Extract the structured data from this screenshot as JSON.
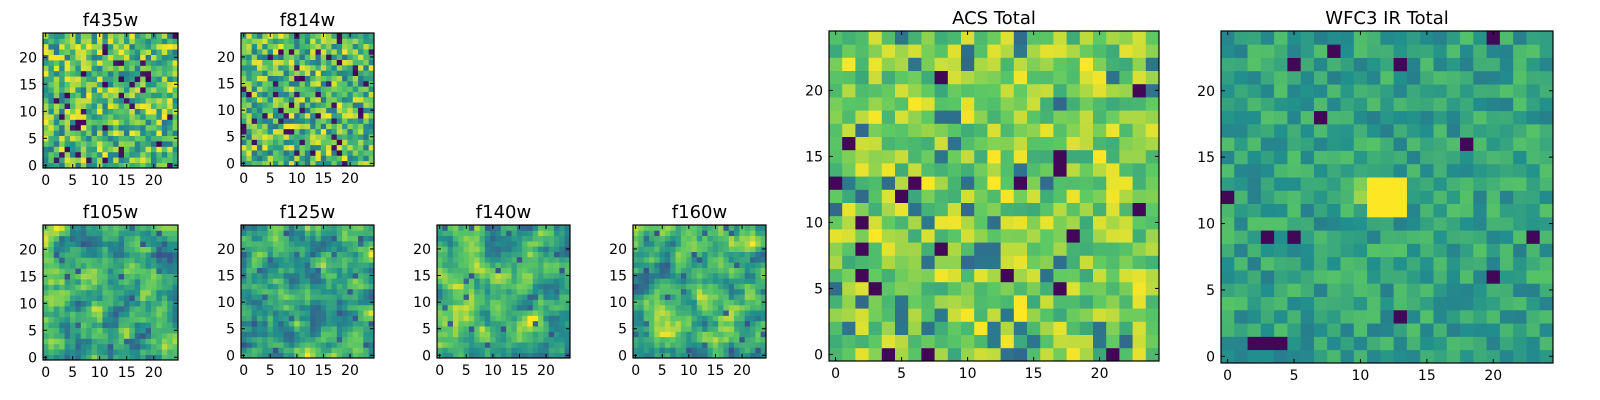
{
  "chart_data": [
    {
      "type": "heatmap",
      "title": "f435w",
      "grid_size": 25,
      "xticks": [
        0,
        5,
        10,
        15,
        20
      ],
      "yticks": [
        0,
        5,
        10,
        15,
        20
      ],
      "xlim": [
        -0.5,
        24.5
      ],
      "ylim": [
        -0.5,
        24.5
      ],
      "colormap": "viridis",
      "pattern": "noise",
      "seed": 11
    },
    {
      "type": "heatmap",
      "title": "f814w",
      "grid_size": 25,
      "xticks": [
        0,
        5,
        10,
        15,
        20
      ],
      "yticks": [
        0,
        5,
        10,
        15,
        20
      ],
      "xlim": [
        -0.5,
        24.5
      ],
      "ylim": [
        -0.5,
        24.5
      ],
      "colormap": "viridis",
      "pattern": "noise",
      "seed": 23
    },
    {
      "type": "heatmap",
      "title": "f105w",
      "grid_size": 25,
      "xticks": [
        0,
        5,
        10,
        15,
        20
      ],
      "yticks": [
        0,
        5,
        10,
        15,
        20
      ],
      "xlim": [
        -0.5,
        24.5
      ],
      "ylim": [
        -0.5,
        24.5
      ],
      "colormap": "viridis",
      "pattern": "smooth",
      "seed": 37
    },
    {
      "type": "heatmap",
      "title": "f125w",
      "grid_size": 25,
      "xticks": [
        0,
        5,
        10,
        15,
        20
      ],
      "yticks": [
        0,
        5,
        10,
        15,
        20
      ],
      "xlim": [
        -0.5,
        24.5
      ],
      "ylim": [
        -0.5,
        24.5
      ],
      "colormap": "viridis",
      "pattern": "smooth",
      "seed": 41
    },
    {
      "type": "heatmap",
      "title": "f140w",
      "grid_size": 25,
      "xticks": [
        0,
        5,
        10,
        15,
        20
      ],
      "yticks": [
        0,
        5,
        10,
        15,
        20
      ],
      "xlim": [
        -0.5,
        24.5
      ],
      "ylim": [
        -0.5,
        24.5
      ],
      "colormap": "viridis",
      "pattern": "smooth",
      "seed": 53
    },
    {
      "type": "heatmap",
      "title": "f160w",
      "grid_size": 25,
      "xticks": [
        0,
        5,
        10,
        15,
        20
      ],
      "yticks": [
        0,
        5,
        10,
        15,
        20
      ],
      "xlim": [
        -0.5,
        24.5
      ],
      "ylim": [
        -0.5,
        24.5
      ],
      "colormap": "viridis",
      "pattern": "smooth",
      "seed": 67
    },
    {
      "type": "heatmap",
      "title": "ACS Total",
      "grid_size": 25,
      "xticks": [
        0,
        5,
        10,
        15,
        20
      ],
      "yticks": [
        0,
        5,
        10,
        15,
        20
      ],
      "xlim": [
        -0.5,
        24.5
      ],
      "ylim": [
        -0.5,
        24.5
      ],
      "colormap": "viridis",
      "pattern": "blocky-bright",
      "seed": 79
    },
    {
      "type": "heatmap",
      "title": "WFC3 IR Total",
      "grid_size": 25,
      "xticks": [
        0,
        5,
        10,
        15,
        20
      ],
      "yticks": [
        0,
        5,
        10,
        15,
        20
      ],
      "xlim": [
        -0.5,
        24.5
      ],
      "ylim": [
        -0.5,
        24.5
      ],
      "colormap": "viridis",
      "pattern": "blocky-source",
      "source_center": [
        12,
        12
      ],
      "seed": 97
    }
  ],
  "colors": {
    "viridis": [
      "#440154",
      "#3b528b",
      "#21908d",
      "#5dc963",
      "#fde725"
    ],
    "axes": "#000000",
    "background": "#ffffff"
  }
}
